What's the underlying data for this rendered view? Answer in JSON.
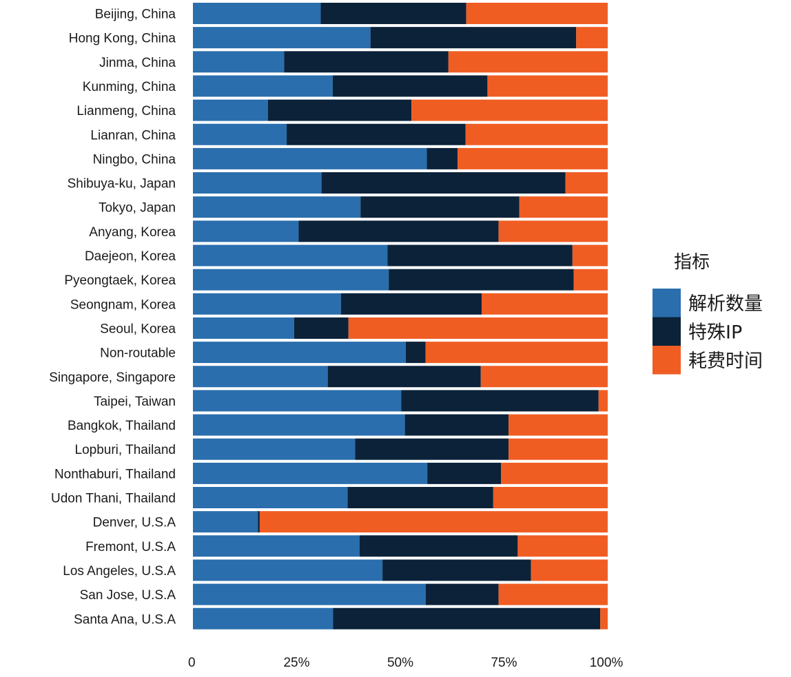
{
  "chart_data": {
    "type": "bar",
    "orientation": "horizontal",
    "stacked": "percent",
    "title": "",
    "xlabel": "",
    "ylabel": "",
    "xlim": [
      0,
      100
    ],
    "x_ticks": [
      "0",
      "25%",
      "50%",
      "75%",
      "100%"
    ],
    "x_tick_values": [
      0,
      25,
      50,
      75,
      100
    ],
    "grid": false,
    "legend": {
      "title": "指标",
      "position": "right"
    },
    "categories": [
      "Beijing, China",
      "Hong Kong, China",
      "Jinma, China",
      "Kunming, China",
      "Lianmeng, China",
      "Lianran, China",
      "Ningbo, China",
      "Shibuya-ku, Japan",
      "Tokyo, Japan",
      "Anyang, Korea",
      "Daejeon, Korea",
      "Pyeongtaek, Korea",
      "Seongnam, Korea",
      "Seoul, Korea",
      "Non-routable",
      "Singapore, Singapore",
      "Taipei, Taiwan",
      "Bangkok, Thailand",
      "Lopburi, Thailand",
      "Nonthaburi, Thailand",
      "Udon Thani, Thailand",
      "Denver, U.S.A",
      "Fremont, U.S.A",
      "Los Angeles, U.S.A",
      "San Jose, U.S.A",
      "Santa Ana, U.S.A"
    ],
    "series": [
      {
        "name": "解析数量",
        "color": "#2a6ead",
        "values": [
          30.8,
          42.8,
          22.0,
          33.7,
          18.1,
          22.6,
          56.4,
          31.0,
          40.4,
          25.5,
          46.9,
          47.2,
          35.7,
          24.4,
          51.3,
          32.5,
          50.2,
          51.1,
          39.1,
          56.5,
          37.3,
          15.7,
          40.2,
          45.7,
          56.1,
          33.8
        ]
      },
      {
        "name": "特殊IP",
        "color": "#0b2239",
        "values": [
          35.1,
          49.6,
          39.6,
          37.3,
          34.6,
          43.1,
          7.4,
          58.8,
          38.3,
          48.2,
          44.6,
          44.6,
          33.9,
          13.1,
          4.8,
          36.9,
          47.6,
          25.0,
          37.0,
          17.8,
          35.1,
          0.4,
          38.1,
          35.8,
          17.6,
          64.4
        ]
      },
      {
        "name": "耗费时间",
        "color": "#f05d23",
        "values": [
          34.1,
          7.6,
          38.4,
          29.0,
          47.3,
          34.3,
          36.2,
          10.2,
          21.3,
          26.3,
          8.5,
          8.2,
          30.4,
          62.5,
          43.9,
          30.6,
          2.2,
          23.9,
          23.9,
          25.7,
          27.6,
          83.9,
          21.7,
          18.5,
          26.3,
          1.8
        ]
      }
    ]
  }
}
